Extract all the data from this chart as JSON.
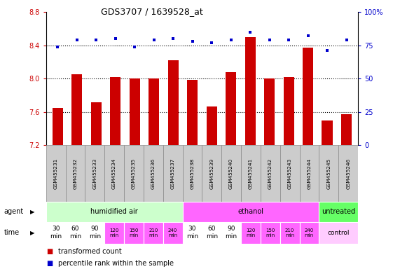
{
  "title": "GDS3707 / 1639528_at",
  "samples": [
    "GSM455231",
    "GSM455232",
    "GSM455233",
    "GSM455234",
    "GSM455235",
    "GSM455236",
    "GSM455237",
    "GSM455238",
    "GSM455239",
    "GSM455240",
    "GSM455241",
    "GSM455242",
    "GSM455243",
    "GSM455244",
    "GSM455245",
    "GSM455246"
  ],
  "bar_values": [
    7.65,
    8.05,
    7.72,
    8.02,
    8.0,
    8.0,
    8.22,
    7.99,
    7.67,
    8.08,
    8.5,
    8.0,
    8.02,
    8.37,
    7.5,
    7.57
  ],
  "dot_values": [
    74,
    79,
    79,
    80,
    74,
    79,
    80,
    78,
    77,
    79,
    85,
    79,
    79,
    82,
    71,
    79
  ],
  "ylim_left": [
    7.2,
    8.8
  ],
  "ylim_right": [
    0,
    100
  ],
  "yticks_left": [
    7.2,
    7.6,
    8.0,
    8.4,
    8.8
  ],
  "yticks_right": [
    0,
    25,
    50,
    75,
    100
  ],
  "bar_color": "#cc0000",
  "dot_color": "#0000cc",
  "dotted_line_values": [
    7.6,
    8.0,
    8.4
  ],
  "agent_groups": [
    {
      "label": "humidified air",
      "start": 0,
      "end": 7,
      "color": "#ccffcc"
    },
    {
      "label": "ethanol",
      "start": 7,
      "end": 14,
      "color": "#ff66ff"
    },
    {
      "label": "untreated",
      "start": 14,
      "end": 16,
      "color": "#66ff66"
    }
  ],
  "time_data": [
    {
      "idx": 0,
      "label": "30\nmin",
      "color": "#ffffff"
    },
    {
      "idx": 1,
      "label": "60\nmin",
      "color": "#ffffff"
    },
    {
      "idx": 2,
      "label": "90\nmin",
      "color": "#ffffff"
    },
    {
      "idx": 3,
      "label": "120\nmin",
      "color": "#ff66ff"
    },
    {
      "idx": 4,
      "label": "150\nmin",
      "color": "#ff66ff"
    },
    {
      "idx": 5,
      "label": "210\nmin",
      "color": "#ff66ff"
    },
    {
      "idx": 6,
      "label": "240\nmin",
      "color": "#ff66ff"
    },
    {
      "idx": 7,
      "label": "30\nmin",
      "color": "#ffffff"
    },
    {
      "idx": 8,
      "label": "60\nmin",
      "color": "#ffffff"
    },
    {
      "idx": 9,
      "label": "90\nmin",
      "color": "#ffffff"
    },
    {
      "idx": 10,
      "label": "120\nmin",
      "color": "#ff66ff"
    },
    {
      "idx": 11,
      "label": "150\nmin",
      "color": "#ff66ff"
    },
    {
      "idx": 12,
      "label": "210\nmin",
      "color": "#ff66ff"
    },
    {
      "idx": 13,
      "label": "240\nmin",
      "color": "#ff66ff"
    },
    {
      "idx": 14,
      "label": "control",
      "color": "#ffccff",
      "span": 2
    }
  ],
  "legend_bar_label": "transformed count",
  "legend_dot_label": "percentile rank within the sample",
  "tick_color_left": "#cc0000",
  "tick_color_right": "#0000cc",
  "sample_bg": "#cccccc",
  "sample_border": "#888888"
}
